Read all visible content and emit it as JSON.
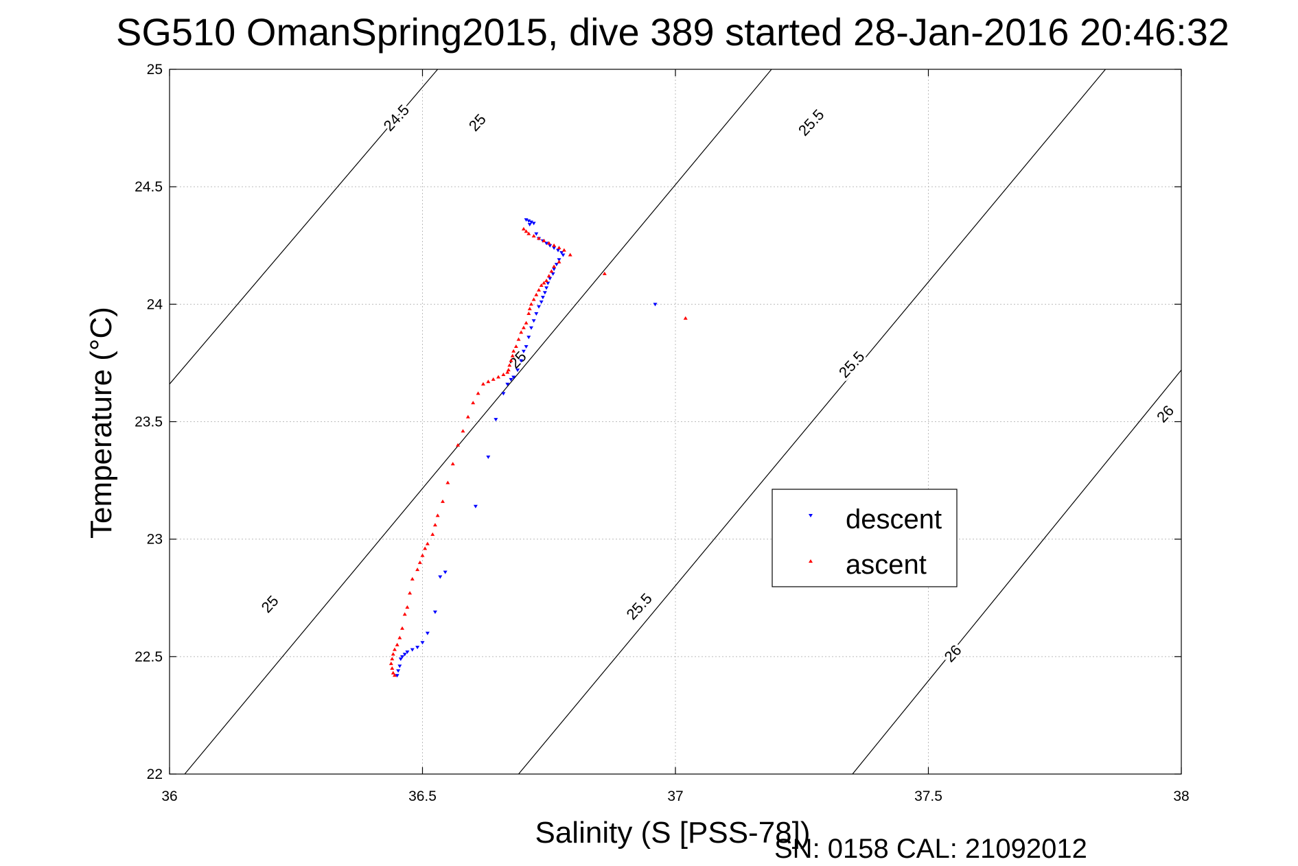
{
  "chart_data": {
    "type": "scatter",
    "title": "SG510 OmanSpring2015, dive 389 started 28-Jan-2016 20:46:32",
    "xlabel": "Salinity (S [PSS-78])",
    "ylabel": "Temperature (°C)",
    "xlim": [
      36,
      38
    ],
    "ylim": [
      22,
      25
    ],
    "xticks": [
      36,
      36.5,
      37,
      37.5,
      38
    ],
    "xtick_labels": [
      "36",
      "36.5",
      "37",
      "37.5",
      "38"
    ],
    "yticks": [
      22,
      22.5,
      23,
      23.5,
      24,
      24.5,
      25
    ],
    "ytick_labels": [
      "22",
      "22.5",
      "23",
      "23.5",
      "24",
      "24.5",
      "25"
    ],
    "grid": true,
    "legend_position": "center-right",
    "footer": "SN: 0158  CAL: 21092012",
    "contours": [
      {
        "label": "24.5",
        "points": [
          [
            36.0,
            23.66
          ],
          [
            36.53,
            25.0
          ]
        ]
      },
      {
        "label": "25",
        "points": [
          [
            36.03,
            22.0
          ],
          [
            37.19,
            25.0
          ]
        ]
      },
      {
        "label": "25.5",
        "points": [
          [
            36.69,
            22.0
          ],
          [
            37.85,
            25.0
          ]
        ]
      },
      {
        "label": "26",
        "points": [
          [
            37.35,
            22.0
          ],
          [
            38.0,
            23.72
          ]
        ]
      }
    ],
    "contour_labels": [
      {
        "text": "24.5",
        "s": 36.45,
        "t": 24.79
      },
      {
        "text": "25",
        "s": 36.61,
        "t": 24.77
      },
      {
        "text": "25",
        "s": 36.2,
        "t": 22.72
      },
      {
        "text": "25",
        "s": 36.69,
        "t": 23.76
      },
      {
        "text": "25.5",
        "s": 37.27,
        "t": 24.77
      },
      {
        "text": "25.5",
        "s": 37.35,
        "t": 23.74
      },
      {
        "text": "25.5",
        "s": 36.93,
        "t": 22.71
      },
      {
        "text": "26",
        "s": 37.97,
        "t": 23.53
      },
      {
        "text": "26",
        "s": 37.55,
        "t": 22.51
      }
    ],
    "series": [
      {
        "name": "descent",
        "color": "#0000ff",
        "marker": "triangle-down",
        "x": [
          36.705,
          36.71,
          36.715,
          36.72,
          36.712,
          36.725,
          36.73,
          36.738,
          36.745,
          36.752,
          36.76,
          36.768,
          36.775,
          36.778,
          36.77,
          36.765,
          36.76,
          36.758,
          36.752,
          36.748,
          36.745,
          36.742,
          36.738,
          36.735,
          36.73,
          36.725,
          36.72,
          36.715,
          36.71,
          36.705,
          36.7,
          36.96,
          36.695,
          36.688,
          36.68,
          36.675,
          36.668,
          36.66,
          36.645,
          36.63,
          36.605,
          36.545,
          36.535,
          36.525,
          36.51,
          36.5,
          36.49,
          36.48,
          36.47,
          36.465,
          36.46,
          36.457,
          36.455,
          36.452,
          36.45
        ],
        "y": [
          24.36,
          24.355,
          24.35,
          24.345,
          24.34,
          24.3,
          24.28,
          24.27,
          24.26,
          24.25,
          24.24,
          24.23,
          24.22,
          24.21,
          24.19,
          24.17,
          24.15,
          24.13,
          24.11,
          24.09,
          24.07,
          24.05,
          24.03,
          24.01,
          23.99,
          23.96,
          23.93,
          23.9,
          23.86,
          23.82,
          23.8,
          24.0,
          23.76,
          23.72,
          23.69,
          23.68,
          23.66,
          23.62,
          23.51,
          23.35,
          23.14,
          22.86,
          22.84,
          22.69,
          22.6,
          22.56,
          22.54,
          22.53,
          22.52,
          22.51,
          22.5,
          22.49,
          22.46,
          22.44,
          22.42
        ]
      },
      {
        "name": "ascent",
        "color": "#ff0000",
        "marker": "triangle-up",
        "x": [
          36.7,
          36.705,
          36.71,
          36.72,
          36.73,
          36.74,
          36.75,
          36.76,
          36.77,
          36.78,
          36.792,
          36.77,
          36.76,
          36.755,
          36.75,
          36.745,
          36.74,
          36.735,
          36.73,
          36.725,
          36.72,
          36.715,
          36.712,
          36.71,
          36.705,
          36.7,
          36.695,
          36.69,
          36.685,
          36.68,
          36.678,
          36.675,
          36.672,
          36.67,
          36.668,
          36.86,
          37.02,
          36.66,
          36.65,
          36.64,
          36.63,
          36.62,
          36.61,
          36.6,
          36.59,
          36.58,
          36.57,
          36.56,
          36.55,
          36.54,
          36.53,
          36.525,
          36.52,
          36.51,
          36.505,
          36.5,
          36.495,
          36.49,
          36.48,
          36.475,
          36.47,
          36.465,
          36.46,
          36.455,
          36.45,
          36.445,
          36.442,
          36.44,
          36.438,
          36.44,
          36.442,
          36.445
        ],
        "y": [
          24.32,
          24.31,
          24.3,
          24.29,
          24.28,
          24.27,
          24.26,
          24.25,
          24.24,
          24.23,
          24.21,
          24.18,
          24.16,
          24.14,
          24.12,
          24.1,
          24.09,
          24.08,
          24.06,
          24.04,
          24.02,
          24.0,
          23.98,
          23.96,
          23.92,
          23.9,
          23.88,
          23.85,
          23.82,
          23.8,
          23.78,
          23.76,
          23.74,
          23.72,
          23.71,
          24.13,
          23.94,
          23.7,
          23.69,
          23.68,
          23.67,
          23.66,
          23.62,
          23.58,
          23.52,
          23.46,
          23.4,
          23.32,
          23.24,
          23.16,
          23.1,
          23.06,
          23.02,
          22.98,
          22.96,
          22.93,
          22.9,
          22.87,
          22.83,
          22.77,
          22.71,
          22.68,
          22.62,
          22.58,
          22.55,
          22.53,
          22.51,
          22.49,
          22.47,
          22.45,
          22.43,
          22.42
        ]
      }
    ]
  }
}
